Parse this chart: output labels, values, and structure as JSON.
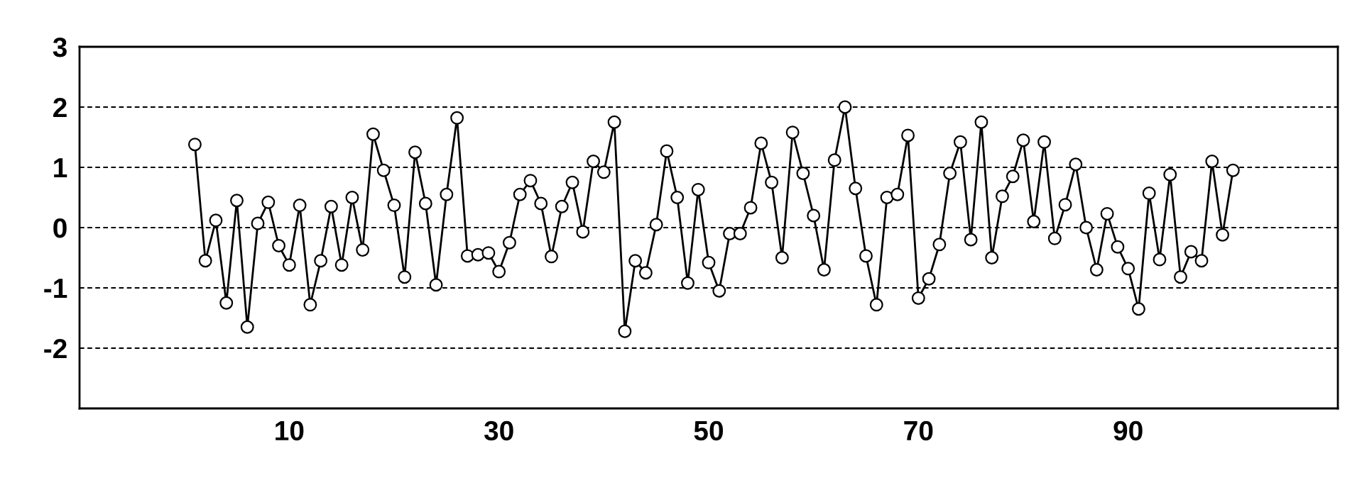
{
  "chart_data": {
    "type": "line",
    "x": [
      1,
      2,
      3,
      4,
      5,
      6,
      7,
      8,
      9,
      10,
      11,
      12,
      13,
      14,
      15,
      16,
      17,
      18,
      19,
      20,
      21,
      22,
      23,
      24,
      25,
      26,
      27,
      28,
      29,
      30,
      31,
      32,
      33,
      34,
      35,
      36,
      37,
      38,
      39,
      40,
      41,
      42,
      43,
      44,
      45,
      46,
      47,
      48,
      49,
      50,
      51,
      52,
      53,
      54,
      55,
      56,
      57,
      58,
      59,
      60,
      61,
      62,
      63,
      64,
      65,
      66,
      67,
      68,
      69,
      70,
      71,
      72,
      73,
      74,
      75,
      76,
      77,
      78,
      79,
      80,
      81,
      82,
      83,
      84,
      85,
      86,
      87,
      88,
      89,
      90,
      91,
      92,
      93,
      94,
      95,
      96,
      97,
      98,
      99,
      100
    ],
    "series": [
      {
        "color": "#000000",
        "values": [
          1.38,
          -0.55,
          0.12,
          -1.25,
          0.45,
          -1.65,
          0.07,
          0.42,
          -0.3,
          -0.62,
          0.37,
          -1.28,
          -0.55,
          0.35,
          -0.62,
          0.5,
          -0.37,
          1.55,
          0.95,
          0.37,
          -0.82,
          1.25,
          0.4,
          -0.95,
          0.55,
          1.82,
          -0.47,
          -0.45,
          -0.42,
          -0.73,
          -0.25,
          0.55,
          0.78,
          0.4,
          -0.48,
          0.35,
          0.75,
          -0.07,
          1.1,
          0.92,
          1.75,
          -1.72,
          -0.55,
          -0.75,
          0.05,
          1.27,
          0.5,
          -0.92,
          0.63,
          -0.58,
          -1.05,
          -0.1,
          -0.1,
          0.33,
          1.4,
          0.75,
          -0.5,
          1.58,
          0.9,
          0.2,
          -0.7,
          1.12,
          2.0,
          0.65,
          -0.47,
          -1.28,
          0.5,
          0.55,
          1.53,
          -1.17,
          -0.85,
          -0.28,
          0.9,
          1.42,
          -0.2,
          1.75,
          -0.5,
          0.52,
          0.85,
          1.45,
          0.1,
          1.42,
          -0.18,
          0.38,
          1.05,
          0.0,
          -0.7,
          0.23,
          -0.32,
          -0.68,
          -1.35,
          0.57,
          -0.53,
          0.88,
          -0.82,
          -0.4,
          -0.55,
          1.1,
          -0.12,
          0.95
        ]
      }
    ],
    "xlim": [
      -10,
      110
    ],
    "xticks": [
      10,
      30,
      50,
      70,
      90
    ],
    "ylim": [
      -3,
      3
    ],
    "yticks": [
      -2,
      -1,
      0,
      1,
      2,
      3
    ],
    "grid": "y",
    "marker": "circle",
    "line_style": "solid"
  }
}
